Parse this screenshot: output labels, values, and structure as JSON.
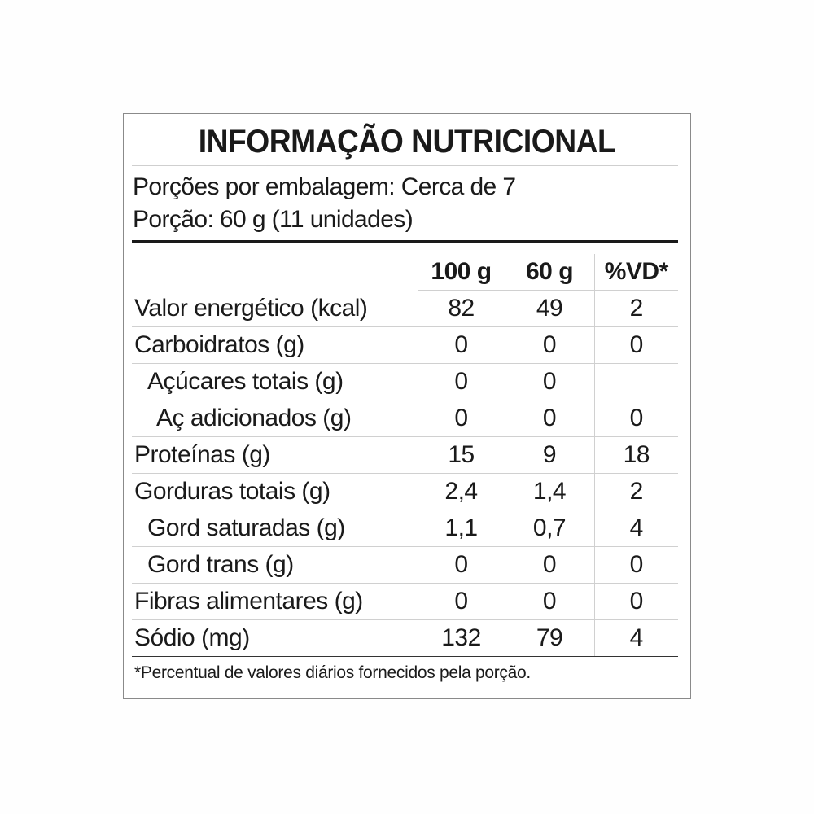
{
  "title": "INFORMAÇÃO NUTRICIONAL",
  "servings_per_package": "Porções por embalagem: Cerca de 7",
  "serving_size": "Porção: 60 g (11 unidades)",
  "columns": [
    "100 g",
    "60 g",
    "%VD*"
  ],
  "rows": [
    {
      "label": "Valor energético (kcal)",
      "indent": 0,
      "per100": "82",
      "perServing": "49",
      "dv": "2"
    },
    {
      "label": "Carboidratos (g)",
      "indent": 0,
      "per100": "0",
      "perServing": "0",
      "dv": "0"
    },
    {
      "label": "Açúcares totais (g)",
      "indent": 1,
      "per100": "0",
      "perServing": "0",
      "dv": ""
    },
    {
      "label": "Aç adicionados (g)",
      "indent": 2,
      "per100": "0",
      "perServing": "0",
      "dv": "0"
    },
    {
      "label": "Proteínas (g)",
      "indent": 0,
      "per100": "15",
      "perServing": "9",
      "dv": "18"
    },
    {
      "label": "Gorduras totais (g)",
      "indent": 0,
      "per100": "2,4",
      "perServing": "1,4",
      "dv": "2"
    },
    {
      "label": "Gord saturadas (g)",
      "indent": 1,
      "per100": "1,1",
      "perServing": "0,7",
      "dv": "4"
    },
    {
      "label": "Gord trans (g)",
      "indent": 1,
      "per100": "0",
      "perServing": "0",
      "dv": "0"
    },
    {
      "label": "Fibras alimentares (g)",
      "indent": 0,
      "per100": "0",
      "perServing": "0",
      "dv": "0"
    },
    {
      "label": "Sódio (mg)",
      "indent": 0,
      "per100": "132",
      "perServing": "79",
      "dv": "4"
    }
  ],
  "footnote": "*Percentual de valores diários fornecidos pela porção."
}
